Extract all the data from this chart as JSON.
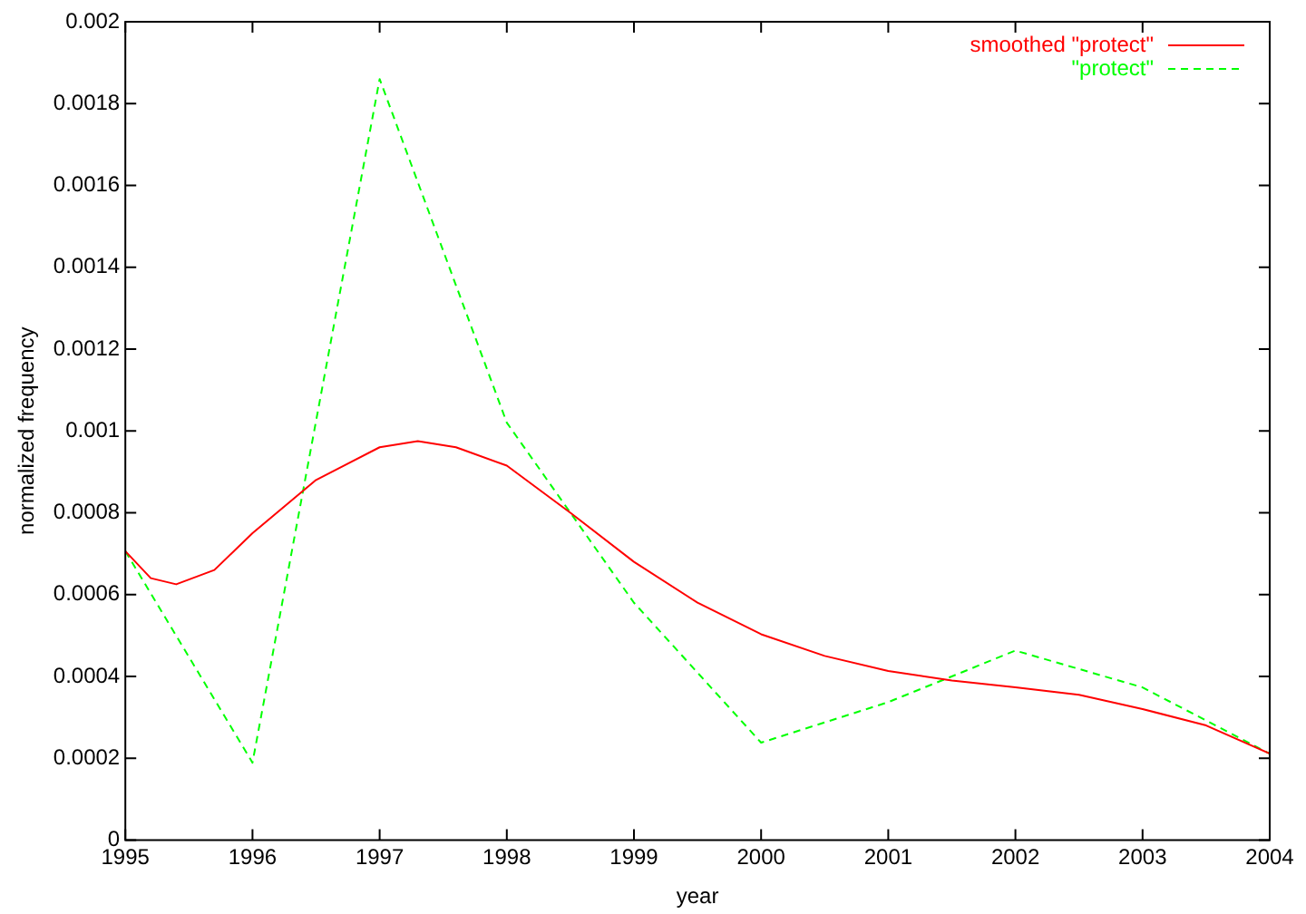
{
  "chart_data": {
    "type": "line",
    "xlabel": "year",
    "ylabel": "normalized frequency",
    "legend": "top right",
    "marker": "none",
    "xlim": [
      1995,
      2004
    ],
    "xticks": [
      1995,
      1996,
      1997,
      1998,
      1999,
      2000,
      2001,
      2002,
      2003,
      2004
    ],
    "ylim": [
      0,
      0.002
    ],
    "yticks": [
      0,
      0.0002,
      0.0004,
      0.0006,
      0.0008,
      0.001,
      0.0012,
      0.0014,
      0.0016,
      0.0018,
      0.002
    ],
    "series": [
      {
        "name": "smoothed \"protect\"",
        "color": "#ff0000",
        "line_style": "solid",
        "x": [
          1995,
          1995.2,
          1995.4,
          1995.7,
          1996,
          1996.5,
          1997,
          1997.3,
          1997.6,
          1998,
          1998.5,
          1999,
          1999.5,
          2000,
          2000.5,
          2001,
          2001.5,
          2002,
          2002.5,
          2003,
          2003.5,
          2004
        ],
        "values": [
          0.000706,
          0.00064,
          0.000625,
          0.00066,
          0.00075,
          0.00088,
          0.00096,
          0.000975,
          0.00096,
          0.000915,
          0.0008,
          0.00068,
          0.00058,
          0.000503,
          0.00045,
          0.000413,
          0.00039,
          0.000373,
          0.000355,
          0.00032,
          0.00028,
          0.000211
        ]
      },
      {
        "name": "\"protect\"",
        "color": "#00ff00",
        "line_style": "dashed",
        "x": [
          1995,
          1996,
          1997,
          1998,
          1999,
          2000,
          2001,
          2002,
          2003,
          2004
        ],
        "values": [
          0.000706,
          0.000189,
          0.00186,
          0.00102,
          0.00058,
          0.000238,
          0.000337,
          0.000463,
          0.000373,
          0.000211
        ]
      }
    ]
  }
}
